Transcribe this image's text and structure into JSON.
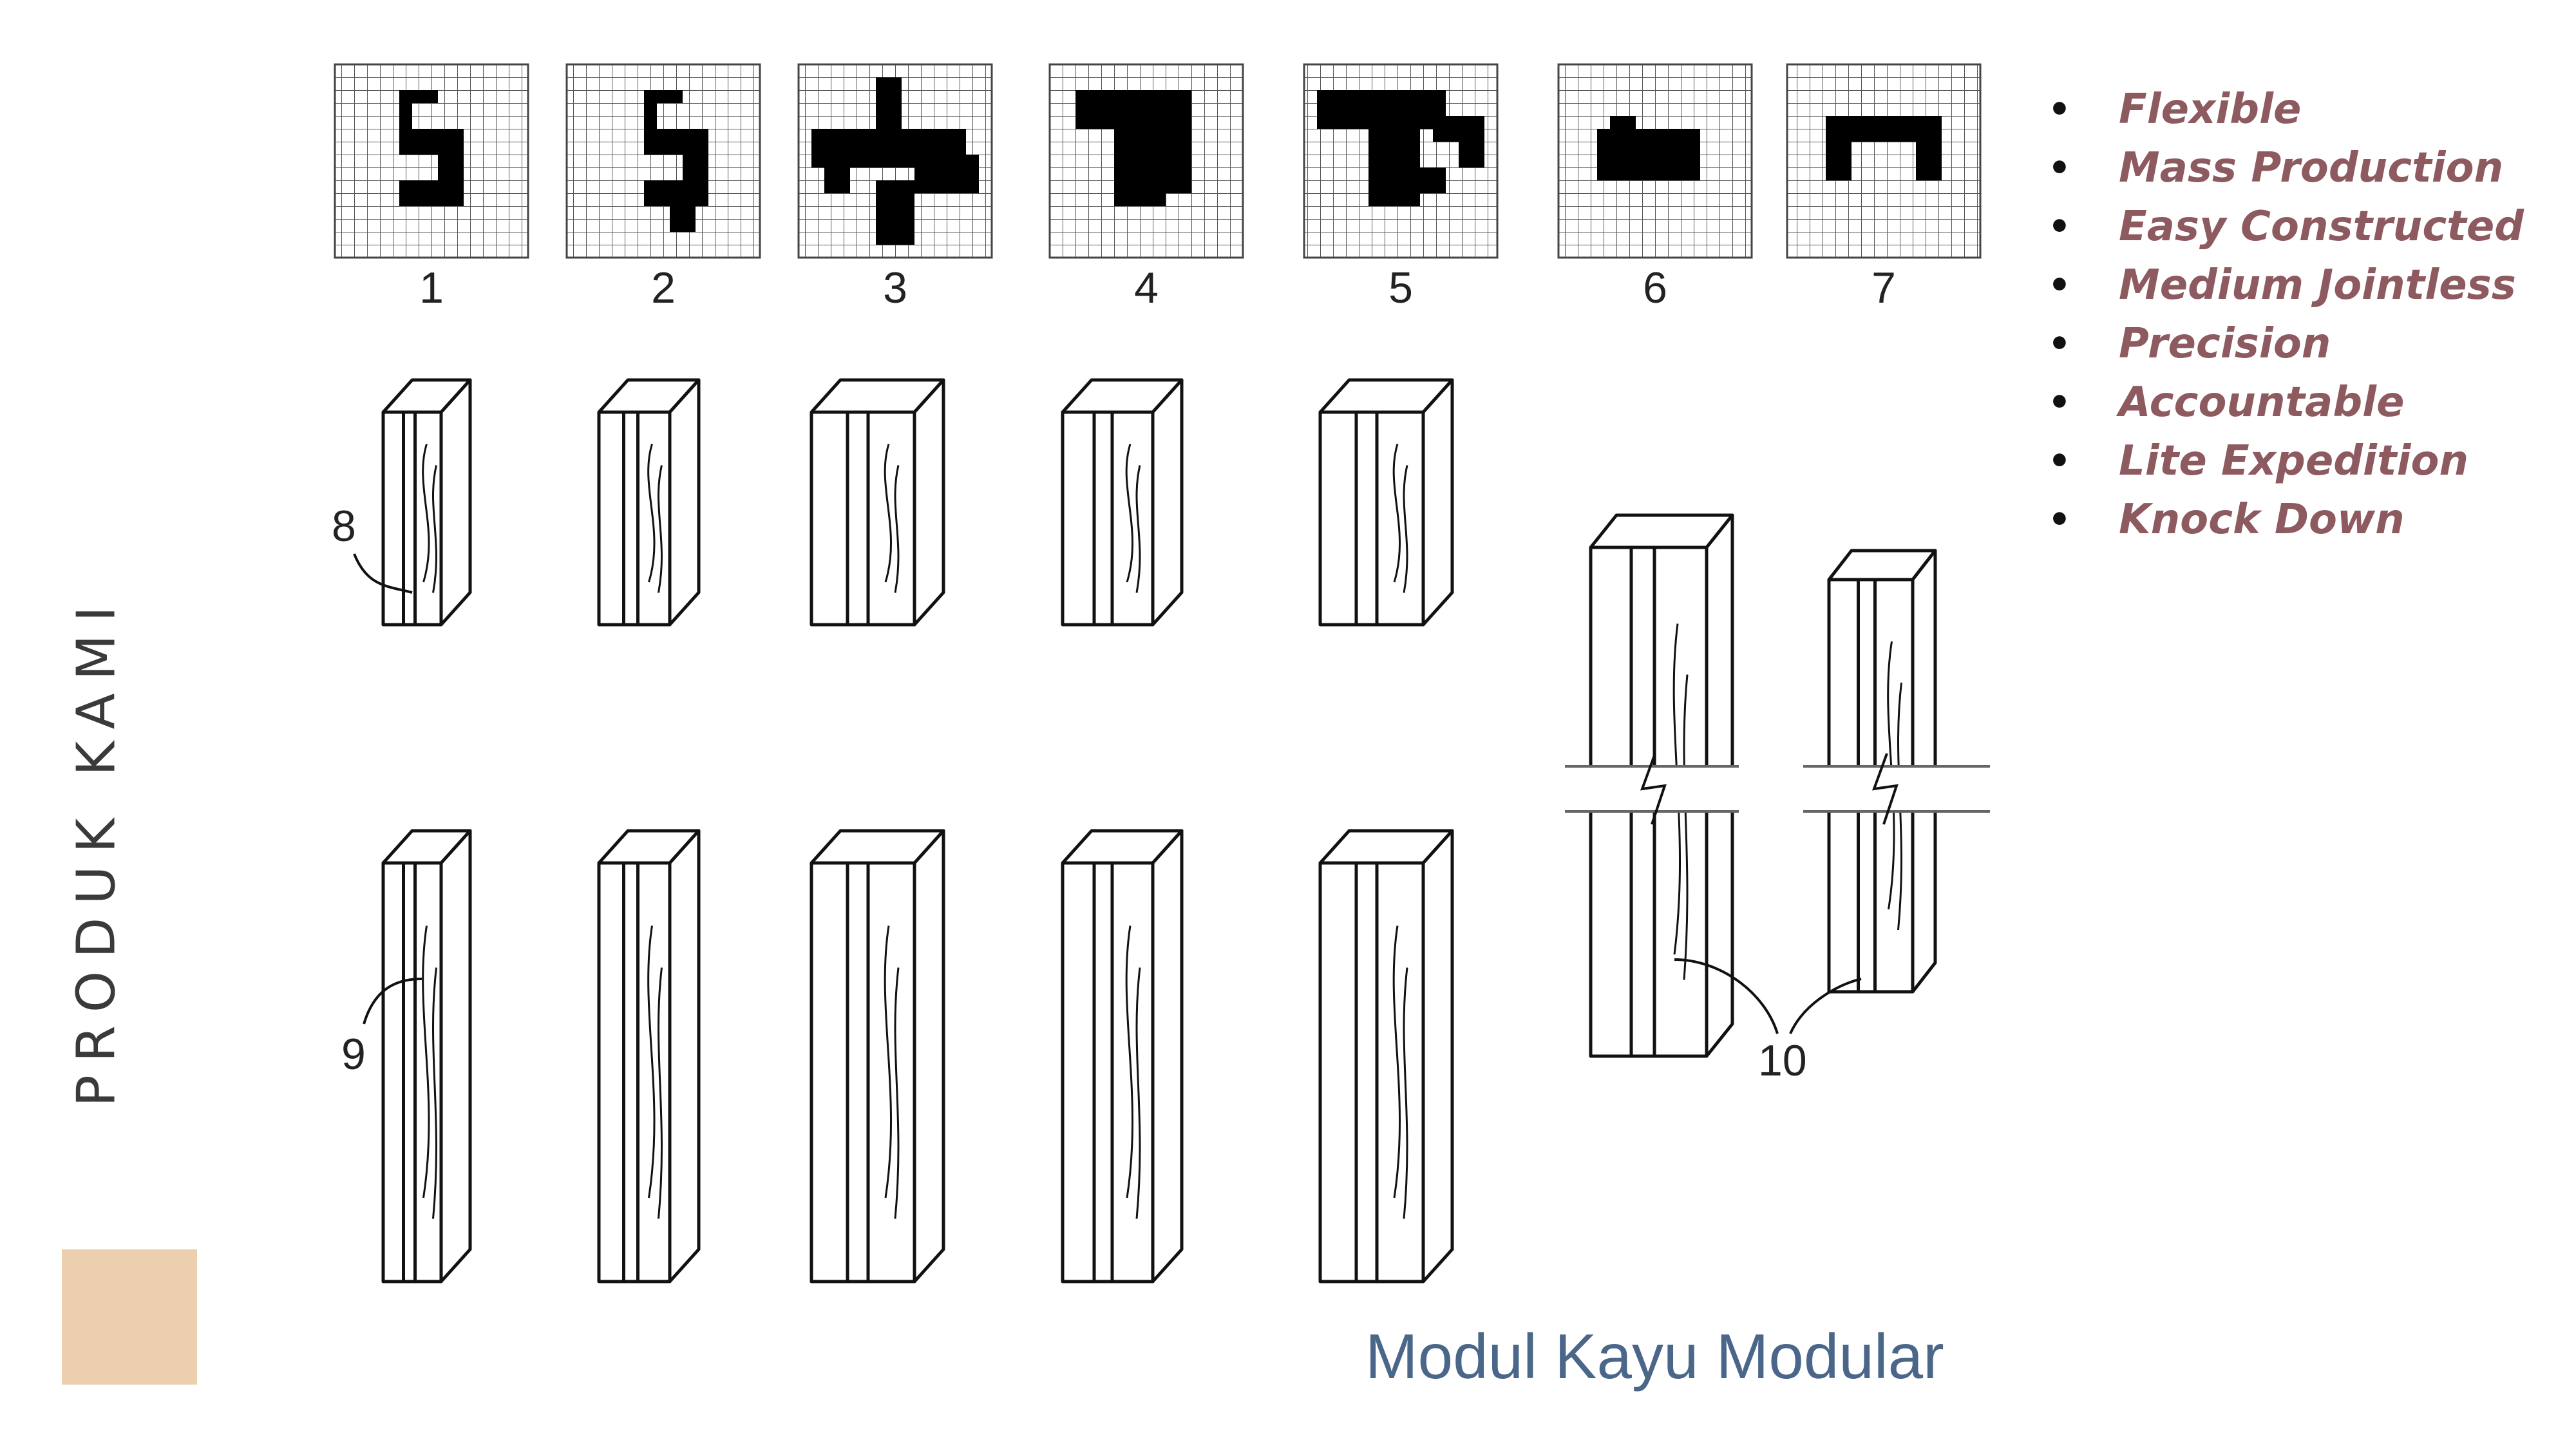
{
  "slide": {
    "side_title": "PRODUK KAMI",
    "swatch_color": "#ebcfae",
    "caption": "Modul Kayu Modular",
    "caption_color": "#4a6689",
    "feature_color": "#8d5a60",
    "features": [
      "Flexible",
      "Mass Production",
      "Easy Constructed",
      "Medium Jointless",
      "Precision",
      "Accountable",
      "Lite Expedition",
      "Knock Down"
    ]
  },
  "figure": {
    "grid_labels": [
      "1",
      "2",
      "3",
      "4",
      "5",
      "6",
      "7"
    ],
    "callouts": [
      "8",
      "9",
      "10"
    ]
  }
}
